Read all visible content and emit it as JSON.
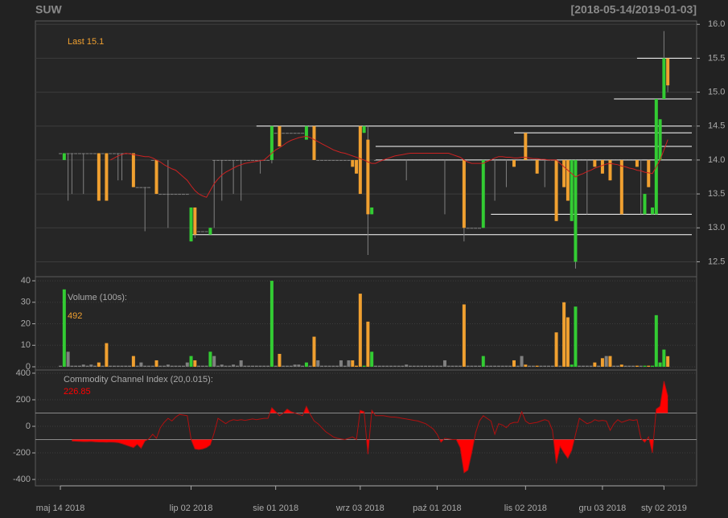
{
  "chart_data": [
    {
      "type": "candlestick",
      "title": "SUW",
      "subtitle": "[2018-05-14/2019-01-03]",
      "last_label": "Last 15.1",
      "xlim": [
        -6.5,
        165.5
      ],
      "ylim": [
        12.28,
        16.05
      ],
      "yticks": [
        12.5,
        {
          "value": 13,
          "label": "13.0"
        },
        13.5,
        {
          "value": 14,
          "label": "14.0"
        },
        14.5,
        {
          "value": 15,
          "label": "15.0"
        },
        15.5,
        {
          "value": 16,
          "label": "16.0"
        }
      ],
      "y_axis": "right",
      "grid": true,
      "up_color": "#33cc33",
      "down_color": "#f0a030",
      "flat_color": "#808080",
      "label_color": "#f0a030",
      "open": [
        14.1,
        14.0,
        14.1,
        14.1,
        14.1,
        14.1,
        14.1,
        14.1,
        14.1,
        14.1,
        14.1,
        14.1,
        14.1,
        14.1,
        14.1,
        14.1,
        14.1,
        14.1,
        14.1,
        14.1,
        13.6,
        13.6,
        13.6,
        13.6,
        14.0,
        14.0,
        13.5,
        13.5,
        13.5,
        13.5,
        13.5,
        13.5,
        13.5,
        13.5,
        12.8,
        13.3,
        12.95,
        12.95,
        12.95,
        12.9,
        14.0,
        14.0,
        14.0,
        14.0,
        14.0,
        14.0,
        14.0,
        14.0,
        14.0,
        14.0,
        14.0,
        14.0,
        14.0,
        14.0,
        14.0,
        14.0,
        14.4,
        14.5,
        14.4,
        14.4,
        14.4,
        14.4,
        14.4,
        14.4,
        14.3,
        14.5,
        14.5,
        14.0,
        14.0,
        14.0,
        14.0,
        14.0,
        14.0,
        14.0,
        14.0,
        14.0,
        14.0,
        14.0,
        14.5,
        14.4,
        14.3,
        13.2,
        14.0,
        14.0,
        14.0,
        14.0,
        14.0,
        14.0,
        14.0,
        14.0,
        14.0,
        14.0,
        14.0,
        14.0,
        14.0,
        14.0,
        14.0,
        14.0,
        14.0,
        14.0,
        14.0,
        14.0,
        14.0,
        14.0,
        14.0,
        14.0,
        13.0,
        13.0,
        13.0,
        13.0,
        13.0,
        14.0,
        14.0,
        14.0,
        14.0,
        14.0,
        14.0,
        14.0,
        14.0,
        14.0,
        14.0,
        14.4,
        14.0,
        14.0,
        14.0,
        14.0,
        14.0,
        14.0,
        14.0,
        14.0,
        14.0,
        14.0,
        14.0,
        13.1,
        12.5,
        14.0,
        14.0,
        14.0,
        14.0,
        14.0,
        14.0,
        14.0,
        14.0,
        14.0,
        14.0,
        14.0,
        14.0,
        14.0,
        14.0,
        14.0,
        14.0,
        14.0,
        13.2,
        14.0,
        13.2,
        13.2,
        14.0,
        14.9,
        15.5
      ],
      "high": [
        14.1,
        14.1,
        14.1,
        14.1,
        14.1,
        14.1,
        14.1,
        14.1,
        14.1,
        14.1,
        14.1,
        14.1,
        14.1,
        14.1,
        14.1,
        14.1,
        14.1,
        14.1,
        14.1,
        14.1,
        13.6,
        13.6,
        13.6,
        13.6,
        14.0,
        14.0,
        13.5,
        13.5,
        14.0,
        13.5,
        13.5,
        13.5,
        13.5,
        13.5,
        13.3,
        13.3,
        12.95,
        12.95,
        12.95,
        13.0,
        14.0,
        14.0,
        14.0,
        14.0,
        14.0,
        14.0,
        14.0,
        14.0,
        14.0,
        14.0,
        14.0,
        14.0,
        14.0,
        14.0,
        14.0,
        14.5,
        14.4,
        14.5,
        14.4,
        14.4,
        14.4,
        14.4,
        14.4,
        14.4,
        14.5,
        14.5,
        14.5,
        14.0,
        14.0,
        14.0,
        14.0,
        14.0,
        14.0,
        14.0,
        14.0,
        14.0,
        14.0,
        14.0,
        14.5,
        14.5,
        14.5,
        13.3,
        14.0,
        14.0,
        14.0,
        14.0,
        14.0,
        14.0,
        14.0,
        14.0,
        14.0,
        14.0,
        14.0,
        14.0,
        14.0,
        14.0,
        14.0,
        14.0,
        14.0,
        14.0,
        14.0,
        14.0,
        14.0,
        14.0,
        14.0,
        14.0,
        13.0,
        13.0,
        13.0,
        13.0,
        14.0,
        14.0,
        14.0,
        14.0,
        14.0,
        14.0,
        14.0,
        14.0,
        14.0,
        14.0,
        14.0,
        14.4,
        14.0,
        14.0,
        14.0,
        14.0,
        14.0,
        14.0,
        14.0,
        14.0,
        14.0,
        14.0,
        14.0,
        14.0,
        14.0,
        14.0,
        14.0,
        14.0,
        14.0,
        14.0,
        14.0,
        14.0,
        14.0,
        14.0,
        14.0,
        14.0,
        14.0,
        14.0,
        14.0,
        14.0,
        14.0,
        14.0,
        13.5,
        14.0,
        13.3,
        14.9,
        14.6,
        15.9,
        15.5
      ],
      "low": [
        14.1,
        14.0,
        13.4,
        13.5,
        14.1,
        14.1,
        13.5,
        14.1,
        14.1,
        14.1,
        13.4,
        14.1,
        13.4,
        14.1,
        14.1,
        13.7,
        13.7,
        14.1,
        14.1,
        13.6,
        13.6,
        13.6,
        12.95,
        13.6,
        14.0,
        13.5,
        13.5,
        13.5,
        13.0,
        13.5,
        13.5,
        13.5,
        13.5,
        13.5,
        12.8,
        12.85,
        12.95,
        12.95,
        12.95,
        12.9,
        13.0,
        14.0,
        13.4,
        14.0,
        14.0,
        13.5,
        14.0,
        13.4,
        14.0,
        14.0,
        14.0,
        14.0,
        13.8,
        14.0,
        14.0,
        13.95,
        14.4,
        14.2,
        14.4,
        14.4,
        14.4,
        14.4,
        14.4,
        14.4,
        14.3,
        14.5,
        14.0,
        14.0,
        14.0,
        14.0,
        14.0,
        14.0,
        14.0,
        14.0,
        14.0,
        14.0,
        13.9,
        13.8,
        13.5,
        14.4,
        12.6,
        13.2,
        14.0,
        14.0,
        14.0,
        14.0,
        14.0,
        14.0,
        14.0,
        14.0,
        13.7,
        14.0,
        14.0,
        14.0,
        14.0,
        14.0,
        14.0,
        14.0,
        14.0,
        14.0,
        13.2,
        14.0,
        14.0,
        14.0,
        14.0,
        12.8,
        13.0,
        13.0,
        13.0,
        13.0,
        13.0,
        14.0,
        14.0,
        13.4,
        14.0,
        14.0,
        13.6,
        14.0,
        13.9,
        14.0,
        14.0,
        14.0,
        14.0,
        14.0,
        13.8,
        14.0,
        13.6,
        14.0,
        14.0,
        13.1,
        14.0,
        13.6,
        13.4,
        13.1,
        12.4,
        14.0,
        14.0,
        13.2,
        14.0,
        13.9,
        14.0,
        13.8,
        14.0,
        13.7,
        14.0,
        14.0,
        13.2,
        14.0,
        14.0,
        14.0,
        13.9,
        13.2,
        13.2,
        13.6,
        13.2,
        13.2,
        14.0,
        14.9,
        15.0
      ],
      "close": [
        14.1,
        14.1,
        14.1,
        14.1,
        14.1,
        14.1,
        14.1,
        14.1,
        14.1,
        14.1,
        13.4,
        14.1,
        13.4,
        14.1,
        14.1,
        14.1,
        14.1,
        14.1,
        14.1,
        13.6,
        13.6,
        13.6,
        13.6,
        13.6,
        14.0,
        13.5,
        13.5,
        13.5,
        13.5,
        13.5,
        13.5,
        13.5,
        13.5,
        13.5,
        13.3,
        12.9,
        12.95,
        12.95,
        12.95,
        13.0,
        14.0,
        14.0,
        14.0,
        14.0,
        14.0,
        14.0,
        14.0,
        14.0,
        14.0,
        14.0,
        14.0,
        14.0,
        14.0,
        14.0,
        14.0,
        14.5,
        14.4,
        14.2,
        14.4,
        14.4,
        14.4,
        14.4,
        14.4,
        14.4,
        14.5,
        14.5,
        14.0,
        14.0,
        14.0,
        14.0,
        14.0,
        14.0,
        14.0,
        14.0,
        14.0,
        14.0,
        13.9,
        13.8,
        13.5,
        14.5,
        13.2,
        13.3,
        14.0,
        14.0,
        14.0,
        14.0,
        14.0,
        14.0,
        14.0,
        14.0,
        14.0,
        14.0,
        14.0,
        14.0,
        14.0,
        14.0,
        14.0,
        14.0,
        14.0,
        14.0,
        14.0,
        14.0,
        14.0,
        14.0,
        14.0,
        13.0,
        13.0,
        13.0,
        13.0,
        13.0,
        14.0,
        14.0,
        14.0,
        14.0,
        14.0,
        14.0,
        14.0,
        14.0,
        13.9,
        14.0,
        14.0,
        14.0,
        14.0,
        14.0,
        13.8,
        14.0,
        14.0,
        14.0,
        14.0,
        13.1,
        14.0,
        13.6,
        13.4,
        14.0,
        14.0,
        14.0,
        14.0,
        14.0,
        14.0,
        13.9,
        14.0,
        13.8,
        14.0,
        13.7,
        14.0,
        14.0,
        13.2,
        14.0,
        14.0,
        14.0,
        13.9,
        14.0,
        13.5,
        13.6,
        13.3,
        14.9,
        14.6,
        15.5,
        15.1
      ],
      "moving_average": {
        "color": "#cc2222",
        "values": [
          null,
          null,
          null,
          null,
          null,
          null,
          null,
          null,
          null,
          null,
          null,
          null,
          null,
          14.0,
          14.03,
          14.06,
          14.08,
          14.1,
          14.09,
          14.08,
          14.07,
          14.06,
          14.05,
          14.05,
          14.03,
          14.0,
          13.97,
          13.93,
          13.9,
          13.87,
          13.85,
          13.8,
          13.75,
          13.7,
          13.62,
          13.55,
          13.5,
          13.47,
          13.45,
          13.55,
          13.65,
          13.72,
          13.78,
          13.82,
          13.85,
          13.88,
          13.91,
          13.93,
          13.95,
          13.96,
          13.97,
          13.98,
          13.99,
          14.0,
          14.05,
          14.1,
          14.15,
          14.18,
          14.22,
          14.26,
          14.29,
          14.31,
          14.33,
          14.34,
          14.35,
          14.33,
          14.3,
          14.27,
          14.24,
          14.21,
          14.18,
          14.15,
          14.13,
          14.11,
          14.1,
          14.08,
          14.06,
          14.04,
          14.02,
          14.0,
          13.97,
          13.95,
          13.95,
          13.98,
          14.0,
          14.02,
          14.04,
          14.06,
          14.07,
          14.08,
          14.09,
          14.1,
          14.1,
          14.1,
          14.1,
          14.1,
          14.1,
          14.1,
          14.1,
          14.1,
          14.1,
          14.1,
          14.08,
          14.06,
          14.04,
          14.0,
          13.97,
          13.95,
          13.95,
          13.95,
          13.95,
          13.98,
          14.0,
          14.03,
          14.05,
          14.05,
          14.04,
          14.04,
          14.03,
          14.03,
          14.04,
          14.04,
          14.03,
          14.02,
          14.02,
          14.01,
          14.01,
          14.0,
          14.0,
          14.0,
          13.95,
          13.9,
          13.85,
          13.8,
          13.75,
          13.78,
          13.8,
          13.83,
          13.85,
          13.88,
          13.9,
          13.92,
          13.94,
          13.95,
          13.94,
          13.93,
          13.91,
          13.9,
          13.88,
          13.87,
          13.85,
          13.84,
          13.82,
          13.81,
          13.8,
          13.9,
          14.0,
          14.15,
          14.3
        ]
      },
      "levels": [
        {
          "value": 15.5,
          "start": 150
        },
        {
          "value": 14.9,
          "start": 144
        },
        {
          "value": 14.5,
          "start": 51
        },
        {
          "value": 14.4,
          "start": 118
        },
        {
          "value": 14.2,
          "start": 82
        },
        {
          "value": 14.0,
          "start": 82
        },
        {
          "value": 13.2,
          "start": 112
        },
        {
          "value": 12.9,
          "start": 34
        }
      ],
      "level_color": "#ffffff"
    },
    {
      "type": "bar",
      "label": "Volume (100s):",
      "last_label": "492",
      "label_color": "#f0a030",
      "xlim": [
        -6.5,
        165.5
      ],
      "ylim": [
        -1.5,
        41.9
      ],
      "yticks": [
        0,
        10,
        20,
        30,
        40
      ],
      "y_axis": "left",
      "grid": true,
      "values": [
        0.5,
        36,
        7,
        0.5,
        0.5,
        0.5,
        1,
        0.5,
        1,
        0.5,
        2,
        0.5,
        11,
        0.5,
        0.5,
        0.5,
        0.5,
        0.5,
        0.5,
        5,
        0.5,
        2,
        0.5,
        0.5,
        0.5,
        3,
        0.5,
        0.5,
        1,
        0.5,
        0.5,
        0.5,
        0.5,
        2,
        5,
        3,
        0.5,
        0.5,
        0.5,
        7,
        5,
        0.5,
        1,
        0.5,
        0.5,
        1,
        0.5,
        3,
        0.5,
        0.5,
        0.5,
        0.5,
        0.5,
        0.5,
        0.5,
        40,
        0.5,
        6,
        0.5,
        0.5,
        0.5,
        1,
        1,
        0.5,
        2,
        0.5,
        14,
        3,
        0.5,
        0.5,
        0.5,
        0.5,
        0.5,
        3,
        0.5,
        3,
        3,
        0.5,
        34,
        0.5,
        21,
        7,
        0.5,
        0.5,
        0.5,
        0.5,
        0.5,
        0.5,
        0.5,
        0.5,
        1,
        0.5,
        0.5,
        0.5,
        0.5,
        0.5,
        0.5,
        0.5,
        0.5,
        0.5,
        3,
        0.5,
        0.5,
        0.5,
        0.5,
        29,
        0.5,
        0.5,
        0.5,
        0.5,
        5,
        0.5,
        0.5,
        0.5,
        0.5,
        0.5,
        0.5,
        0.5,
        3,
        0.5,
        5,
        1,
        0.5,
        0.5,
        0.5,
        0.5,
        0.5,
        0.5,
        0.5,
        16,
        0.5,
        30,
        23,
        1,
        28,
        0.5,
        0.5,
        0.5,
        0.5,
        2,
        0.5,
        4,
        5,
        5,
        0.5,
        0.5,
        1,
        0.5,
        0.5,
        0.5,
        0.5,
        0.5,
        0.5,
        0.5,
        0.5,
        24,
        2,
        8,
        4.92
      ]
    },
    {
      "type": "line",
      "label": "Commodity Channel Index (20,0.015):",
      "last_label": "226.85",
      "color": "#ff0000",
      "bands": [
        -100,
        100
      ],
      "xlim": [
        -6.5,
        165.5
      ],
      "ylim": [
        -448,
        424
      ],
      "yticks": [
        -400,
        -200,
        0,
        200,
        400
      ],
      "y_axis": "left",
      "grid": true,
      "xticks": [
        {
          "value": 0,
          "label": "maj 14 2018"
        },
        {
          "value": 34,
          "label": "lip 02 2018"
        },
        {
          "value": 56,
          "label": "sie 01 2018"
        },
        {
          "value": 78,
          "label": "wrz 03 2018"
        },
        {
          "value": 98,
          "label": "paź 01 2018"
        },
        {
          "value": 121,
          "label": "lis 02 2018"
        },
        {
          "value": 141,
          "label": "gru 03 2018"
        },
        {
          "value": 157,
          "label": "sty 02 2019"
        }
      ],
      "values": [
        null,
        null,
        null,
        -110,
        -112,
        -113,
        -115,
        -115,
        -114,
        -116,
        -118,
        -118,
        -120,
        -118,
        -120,
        -122,
        -130,
        -140,
        -150,
        -160,
        -135,
        -165,
        -110,
        -95,
        -60,
        -90,
        -10,
        30,
        60,
        40,
        70,
        90,
        85,
        80,
        -100,
        -170,
        -175,
        -170,
        -160,
        -140,
        -50,
        60,
        40,
        20,
        40,
        50,
        45,
        50,
        45,
        50,
        55,
        50,
        55,
        60,
        60,
        140,
        110,
        80,
        100,
        130,
        110,
        100,
        90,
        80,
        150,
        90,
        40,
        20,
        -10,
        -40,
        -60,
        -80,
        -90,
        -95,
        -100,
        -90,
        -80,
        -100,
        120,
        110,
        -210,
        120,
        80,
        80,
        80,
        75,
        70,
        70,
        65,
        60,
        55,
        50,
        45,
        40,
        30,
        20,
        0,
        -20,
        -60,
        -120,
        -90,
        -95,
        -100,
        -100,
        -160,
        -350,
        -330,
        -200,
        -50,
        40,
        80,
        60,
        40,
        -60,
        20,
        10,
        -10,
        20,
        30,
        30,
        110,
        40,
        20,
        25,
        30,
        40,
        50,
        40,
        -30,
        -280,
        -150,
        -200,
        -240,
        -180,
        -60,
        60,
        40,
        20,
        30,
        50,
        40,
        45,
        40,
        -30,
        20,
        50,
        30,
        40,
        50,
        45,
        50,
        -90,
        -120,
        -80,
        -200,
        130,
        150,
        340,
        226.85
      ]
    }
  ]
}
